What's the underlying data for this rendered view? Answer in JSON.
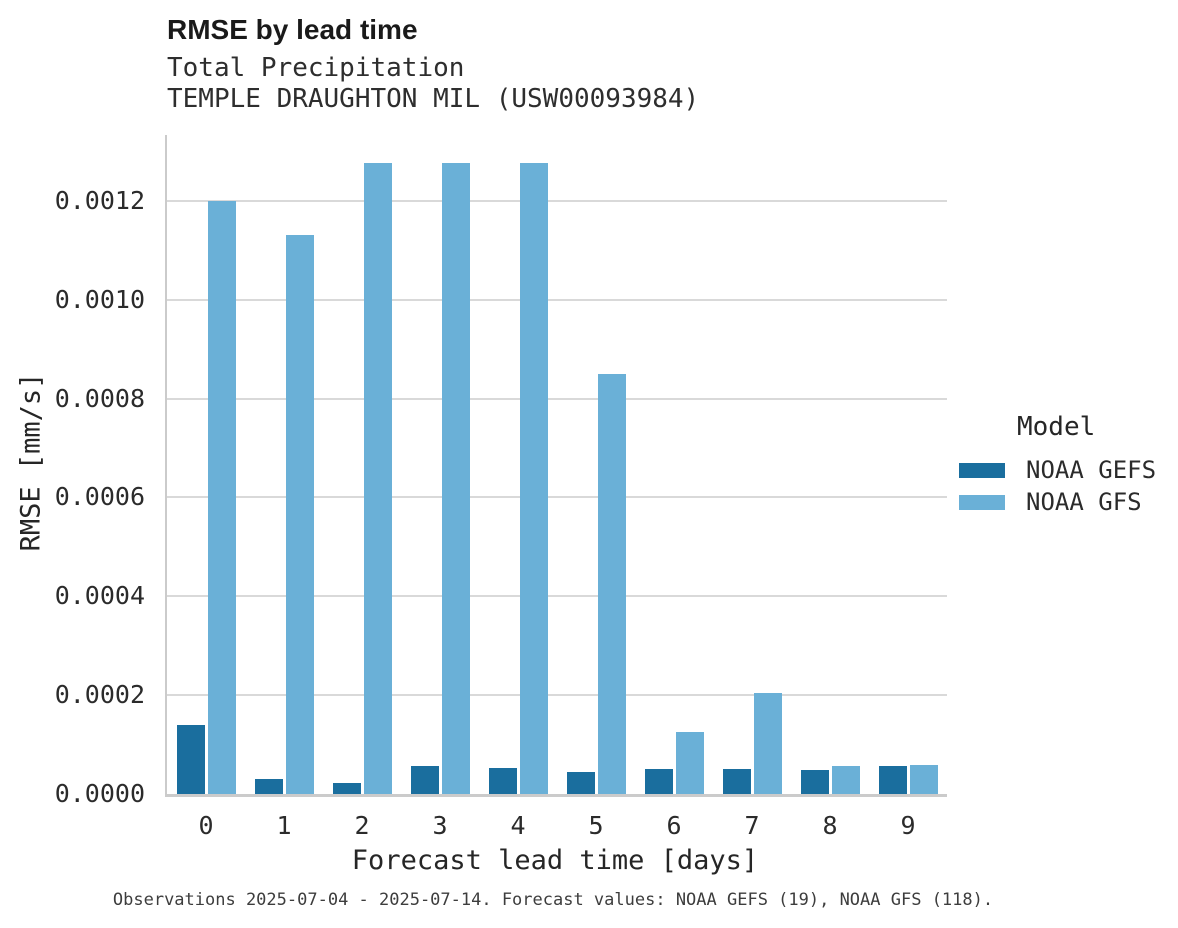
{
  "caption": "Observations 2025-07-04 - 2025-07-14. Forecast values: NOAA GEFS (19), NOAA GFS (118).",
  "chart_data": {
    "type": "bar",
    "title": "RMSE by lead time",
    "subtitle": "Total Precipitation",
    "station": "TEMPLE DRAUGHTON MIL (USW00093984)",
    "xlabel": "Forecast lead time [days]",
    "ylabel": "RMSE [mm/s]",
    "legend_title": "Model",
    "legend_position": "right",
    "grid": true,
    "categories": [
      "0",
      "1",
      "2",
      "3",
      "4",
      "5",
      "6",
      "7",
      "8",
      "9"
    ],
    "series": [
      {
        "name": "NOAA GEFS",
        "color": "#1A6E9E",
        "values": [
          0.00014,
          3e-05,
          2.2e-05,
          5.7e-05,
          5.3e-05,
          4.4e-05,
          5e-05,
          5.1e-05,
          4.9e-05,
          5.7e-05
        ]
      },
      {
        "name": "NOAA GFS",
        "color": "#6AB0D7",
        "values": [
          0.0012,
          0.00113,
          0.001277,
          0.001277,
          0.001277,
          0.00085,
          0.000125,
          0.000205,
          5.7e-05,
          5.9e-05
        ]
      }
    ],
    "ylim": [
      0,
      0.001333
    ],
    "yticks": [
      0.0,
      0.0002,
      0.0004,
      0.0006,
      0.0008,
      0.001,
      0.0012
    ],
    "ytick_labels": [
      "0.0000",
      "0.0002",
      "0.0004",
      "0.0006",
      "0.0008",
      "0.0010",
      "0.0012"
    ]
  }
}
